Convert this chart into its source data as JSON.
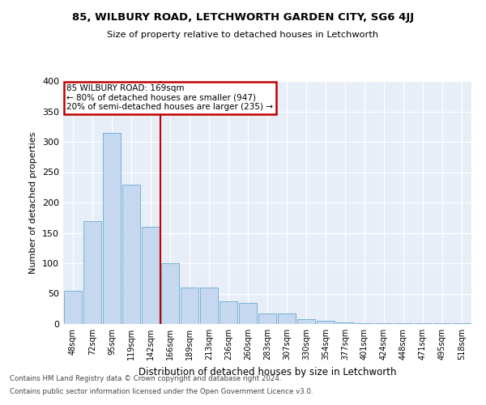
{
  "title": "85, WILBURY ROAD, LETCHWORTH GARDEN CITY, SG6 4JJ",
  "subtitle": "Size of property relative to detached houses in Letchworth",
  "xlabel": "Distribution of detached houses by size in Letchworth",
  "ylabel": "Number of detached properties",
  "categories": [
    "48sqm",
    "72sqm",
    "95sqm",
    "119sqm",
    "142sqm",
    "166sqm",
    "189sqm",
    "213sqm",
    "236sqm",
    "260sqm",
    "283sqm",
    "307sqm",
    "330sqm",
    "354sqm",
    "377sqm",
    "401sqm",
    "424sqm",
    "448sqm",
    "471sqm",
    "495sqm",
    "518sqm"
  ],
  "values": [
    55,
    170,
    315,
    230,
    160,
    100,
    60,
    60,
    38,
    35,
    18,
    18,
    8,
    6,
    3,
    1,
    1,
    1,
    1,
    1,
    2
  ],
  "bar_color": "#c5d8f0",
  "bar_edge_color": "#6aaad4",
  "vline_color": "#c00000",
  "annotation_title": "85 WILBURY ROAD: 169sqm",
  "annotation_line1": "← 80% of detached houses are smaller (947)",
  "annotation_line2": "20% of semi-detached houses are larger (235) →",
  "annotation_box_color": "#c00000",
  "background_color": "#e8eef8",
  "grid_color": "#ffffff",
  "footer1": "Contains HM Land Registry data © Crown copyright and database right 2024.",
  "footer2": "Contains public sector information licensed under the Open Government Licence v3.0.",
  "ylim": [
    0,
    400
  ],
  "yticks": [
    0,
    50,
    100,
    150,
    200,
    250,
    300,
    350,
    400
  ]
}
